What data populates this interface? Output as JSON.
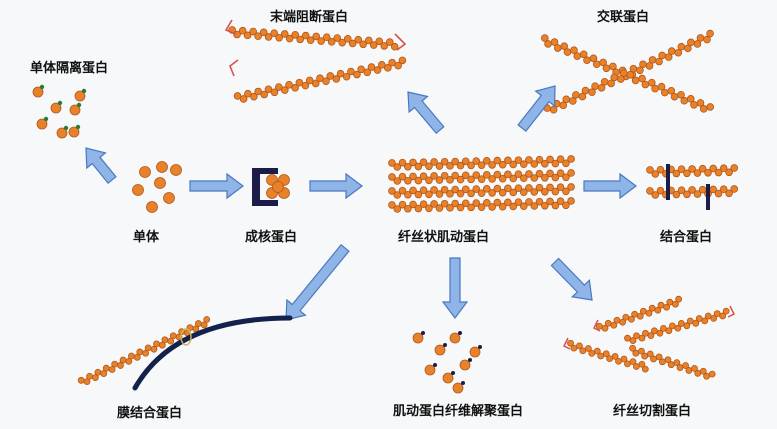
{
  "labels": {
    "monomer": "单体",
    "monomer_sequestering": "单体隔离蛋白",
    "nucleating": "成核蛋白",
    "f_actin": "纤丝状肌动蛋白",
    "capping": "末端阻断蛋白",
    "crosslinking": "交联蛋白",
    "binding": "结合蛋白",
    "membrane_binding": "膜结合蛋白",
    "depolymerizing": "肌动蛋白纤维解聚蛋白",
    "severing": "纤丝切割蛋白"
  },
  "colors": {
    "bead": "#e8822a",
    "bead_edge": "#b4561a",
    "arrow": "#8fb4e8",
    "arrow_edge": "#4a78c0",
    "dark": "#1c1c4a",
    "cap": "#d65050",
    "membrane": "#12224a"
  }
}
